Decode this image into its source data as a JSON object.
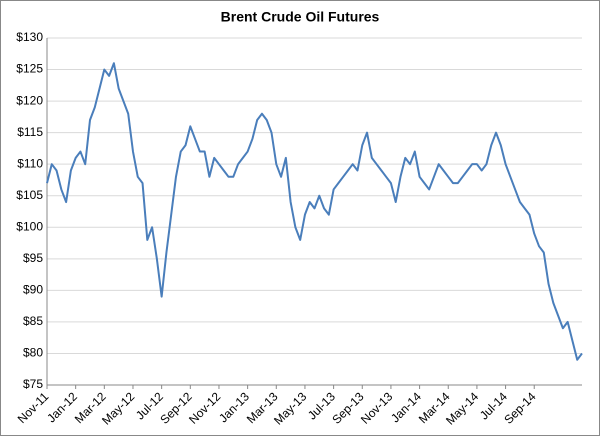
{
  "chart_data": {
    "type": "line",
    "title": "Brent Crude Oil Futures",
    "categories": [
      "Nov-11",
      null,
      null,
      null,
      null,
      null,
      "Jan-12",
      null,
      null,
      null,
      null,
      null,
      "Mar-12",
      null,
      null,
      null,
      null,
      null,
      "May-12",
      null,
      null,
      null,
      null,
      null,
      "Jul-12",
      null,
      null,
      null,
      null,
      null,
      "Sep-12",
      null,
      null,
      null,
      null,
      null,
      "Nov-12",
      null,
      null,
      null,
      null,
      null,
      "Jan-13",
      null,
      null,
      null,
      null,
      null,
      "Mar-13",
      null,
      null,
      null,
      null,
      null,
      "May-13",
      null,
      null,
      null,
      null,
      null,
      "Jul-13",
      null,
      null,
      null,
      null,
      null,
      "Sep-13",
      null,
      null,
      null,
      null,
      null,
      "Nov-13",
      null,
      null,
      null,
      null,
      null,
      "Jan-14",
      null,
      null,
      null,
      null,
      null,
      "Mar-14",
      null,
      null,
      null,
      null,
      null,
      "May-14",
      null,
      null,
      null,
      null,
      null,
      "Jul-14",
      null,
      null,
      null,
      null,
      null,
      "Sep-14",
      null,
      null,
      null,
      null,
      null,
      null,
      null,
      null,
      null,
      null
    ],
    "series": [
      {
        "name": "Brent",
        "color": "#4a7ebb",
        "values": [
          107,
          110,
          109,
          106,
          104,
          109,
          111,
          112,
          110,
          117,
          119,
          122,
          125,
          124,
          126,
          122,
          120,
          118,
          112,
          108,
          107,
          98,
          100,
          95,
          89,
          96,
          102,
          108,
          112,
          113,
          116,
          114,
          112,
          112,
          108,
          111,
          110,
          109,
          108,
          108,
          110,
          111,
          112,
          114,
          117,
          118,
          117,
          115,
          110,
          108,
          111,
          104,
          100,
          98,
          102,
          104,
          103,
          105,
          103,
          102,
          106,
          107,
          108,
          109,
          110,
          109,
          113,
          115,
          111,
          110,
          109,
          108,
          107,
          104,
          108,
          111,
          110,
          112,
          108,
          107,
          106,
          108,
          110,
          109,
          108,
          107,
          107,
          108,
          109,
          110,
          110,
          109,
          110,
          113,
          115,
          113,
          110,
          108,
          106,
          104,
          103,
          102,
          99,
          97,
          96,
          91,
          88,
          86,
          84,
          85,
          82,
          79,
          80
        ]
      }
    ],
    "ylim": [
      75,
      130
    ],
    "yticks": [
      {
        "value": 75,
        "label": "$75"
      },
      {
        "value": 80,
        "label": "$80"
      },
      {
        "value": 85,
        "label": "$85"
      },
      {
        "value": 90,
        "label": "$90"
      },
      {
        "value": 95,
        "label": "$95"
      },
      {
        "value": 100,
        "label": "$100"
      },
      {
        "value": 105,
        "label": "$105"
      },
      {
        "value": 110,
        "label": "$110"
      },
      {
        "value": 115,
        "label": "$115"
      },
      {
        "value": 120,
        "label": "$120"
      },
      {
        "value": 125,
        "label": "$125"
      },
      {
        "value": 130,
        "label": "$130"
      }
    ],
    "grid": true
  }
}
